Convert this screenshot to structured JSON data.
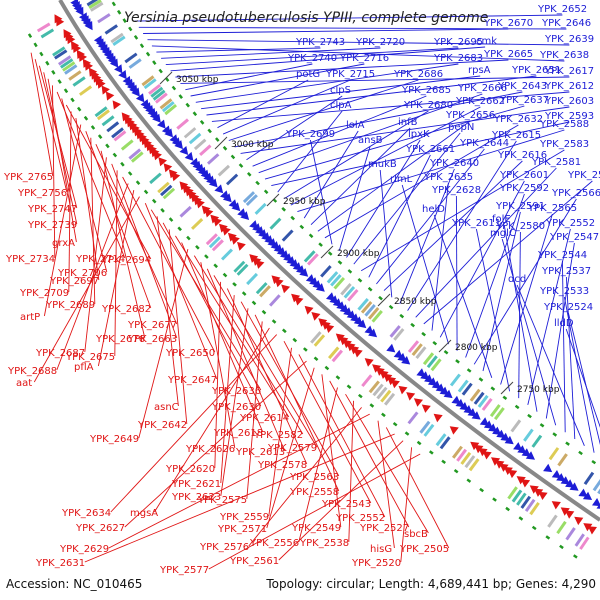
{
  "title": "Yersinia pseudotuberculosis YPIII, complete genome",
  "footer": {
    "accession": "Accession: NC_010465",
    "summary": "Topology: circular; Length: 4,689,441 bp; Genes: 4,290"
  },
  "colors": {
    "forward": "#1d1dd6",
    "reverse": "#e01515",
    "backbone": "#888888",
    "gc": "#229922"
  },
  "kbp_ticks": [
    "3050 kbp",
    "3000 kbp",
    "2950 kbp",
    "2900 kbp",
    "2850 kbp",
    "2800 kbp",
    "2750 kbp"
  ],
  "blue_labels": [
    "YPK_2652",
    "YPK_2646",
    "YPK_2670",
    "YPK_2639",
    "YPK_2638",
    "YPK_2743",
    "YPK_2720",
    "YPK_2695",
    "cmk",
    "YPK_2665",
    "YPK_2617",
    "YPK_2740",
    "YPK_2716",
    "YPK_2683",
    "rpsA",
    "YPK_2651",
    "YPK_2612",
    "potG",
    "YPK_2715",
    "YPK_2686",
    "YPK_2643",
    "YPK_2603",
    "clpS",
    "YPK_2685",
    "YPK_2666",
    "YPK_2637",
    "YPK_2593",
    "clpA",
    "YPK_2680",
    "YPK_2662",
    "YPK_2588",
    "lolA",
    "infB",
    "YPK_2656",
    "YPK_2632",
    "YPK_2699",
    "ansB",
    "lpxK",
    "pepN",
    "YPK_2583",
    "YPK_2661",
    "YPK_2644",
    "YPK_2616",
    "mukB",
    "YPK_2640",
    "YPK_2615",
    "YPK_2581",
    "YPK_2567",
    "YPK_2635",
    "YPK_2601",
    "rlmL",
    "YPK_2628",
    "YPK_2592",
    "YPK_2566",
    "YPK_2591",
    "helD",
    "YPK_2565",
    "YPK_2611",
    "YPK_2580",
    "YPK_2552",
    "folE",
    "YPK_2547",
    "mglC",
    "YPK_2544",
    "YPK_2537",
    "dcd",
    "YPK_2533",
    "YPK_2524",
    "lldD"
  ],
  "red_labels": [
    "YPK_2765",
    "YPK_2756",
    "YPK_2747",
    "YPK_2739",
    "grxA",
    "YPK_2734",
    "YPK_2714",
    "YPK_2706",
    "YPK_2694",
    "YPK_2709",
    "YPK_2697",
    "artP",
    "YPK_2682",
    "YPK_2689",
    "YPK_2677",
    "YPK_2676",
    "YPK_2687",
    "YPK_2663",
    "YPK_2675",
    "YPK_2650",
    "YPK_2688",
    "pflA",
    "aat",
    "YPK_2647",
    "YPK_2636",
    "asnC",
    "YPK_2630",
    "YPK_2642",
    "YPK_2614",
    "YPK_2618",
    "YPK_2649",
    "YPK_2582",
    "YPK_2626",
    "YPK_2613",
    "YPK_2579",
    "YPK_2620",
    "YPK_2578",
    "YPK_2621",
    "YPK_2563",
    "YPK_2623",
    "YPK_2558",
    "YPK_2575",
    "mgsA",
    "YPK_2634",
    "YPK_2543",
    "YPK_2559",
    "YPK_2552",
    "YPK_2627",
    "YPK_2571",
    "YPK_2549",
    "YPK_2527",
    "YPK_2556",
    "sbcB",
    "YPK_2538",
    "YPK_2576",
    "YPK_2629",
    "hisG",
    "YPK_2505",
    "YPK_2631",
    "YPK_2561",
    "YPK_2520",
    "YPK_2577"
  ]
}
